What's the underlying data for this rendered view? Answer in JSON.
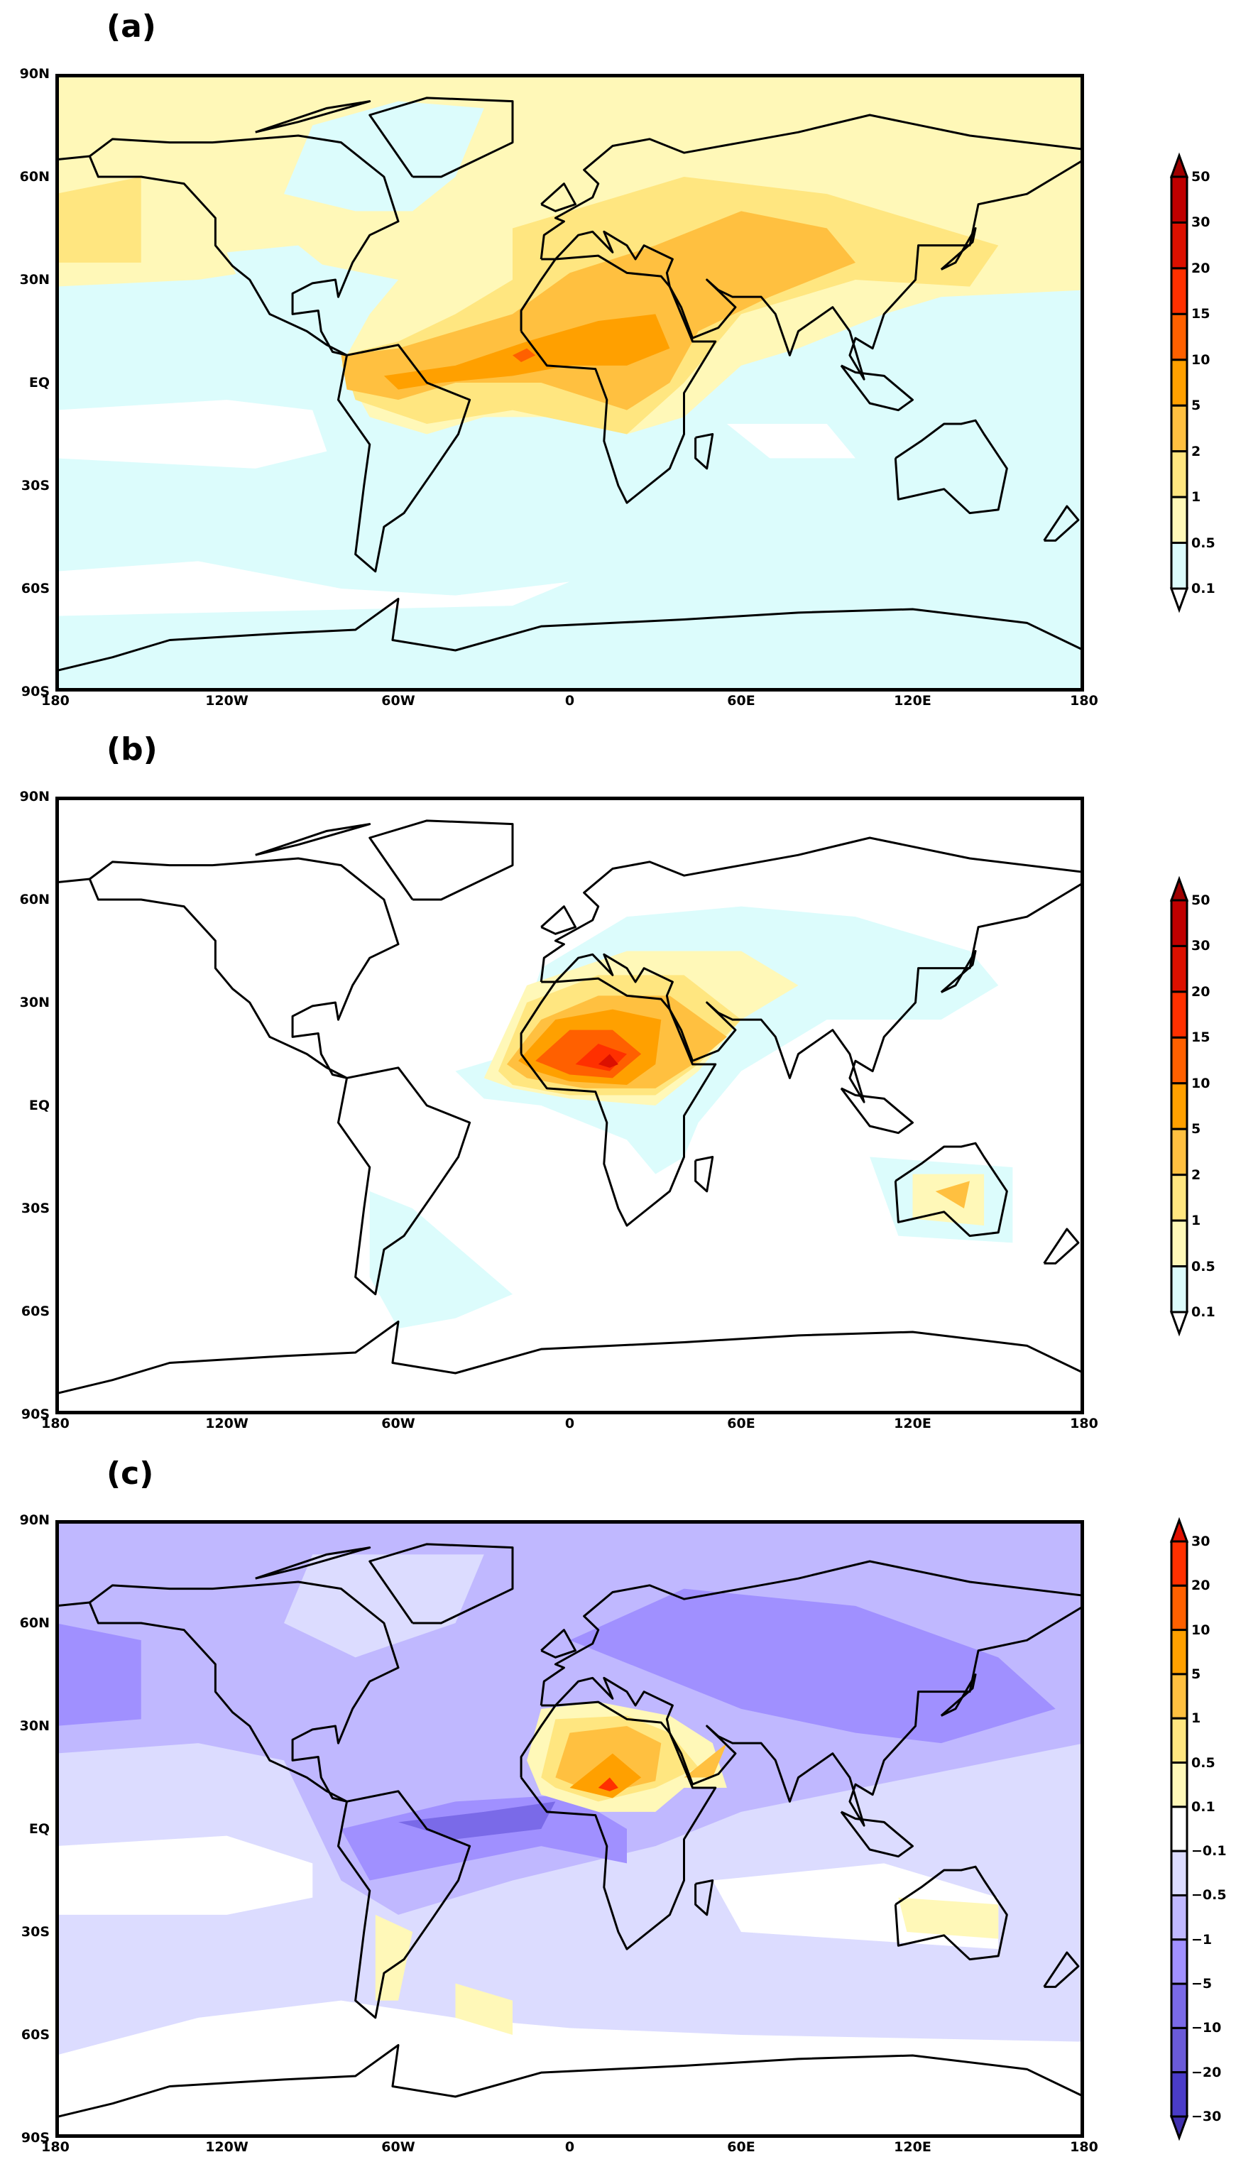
{
  "panels": [
    {
      "label": "(a)",
      "id": "a"
    },
    {
      "label": "(b)",
      "id": "b"
    },
    {
      "label": "(c)",
      "id": "c"
    }
  ],
  "lat_ticks": [
    "90N",
    "60N",
    "30N",
    "EQ",
    "30S",
    "60S",
    "90S"
  ],
  "lon_ticks": [
    "180",
    "120W",
    "60W",
    "0",
    "60E",
    "120E",
    "180"
  ],
  "colorbar_ab": {
    "labels": [
      "50",
      "30",
      "20",
      "15",
      "10",
      "5",
      "2",
      "1",
      "0.5",
      "0.1"
    ],
    "colors": [
      "#a00000",
      "#c00000",
      "#dc1000",
      "#ff3000",
      "#ff6000",
      "#ffa000",
      "#ffc040",
      "#ffe680",
      "#fff8b8",
      "#dcfcfc",
      "#ffffff"
    ]
  },
  "colorbar_c": {
    "labels": [
      "30",
      "20",
      "10",
      "5",
      "1",
      "0.5",
      "0.1",
      "−0.1",
      "−0.5",
      "−1",
      "−5",
      "−10",
      "−20",
      "−30"
    ],
    "colors": [
      "#e01000",
      "#ff3000",
      "#ff6000",
      "#ffa000",
      "#ffc040",
      "#ffe680",
      "#fff8b8",
      "#ffffff",
      "#dcdcff",
      "#c0b8ff",
      "#a090ff",
      "#7a6ae8",
      "#6a5ad8",
      "#4a3cc8",
      "#4030b0"
    ]
  }
}
